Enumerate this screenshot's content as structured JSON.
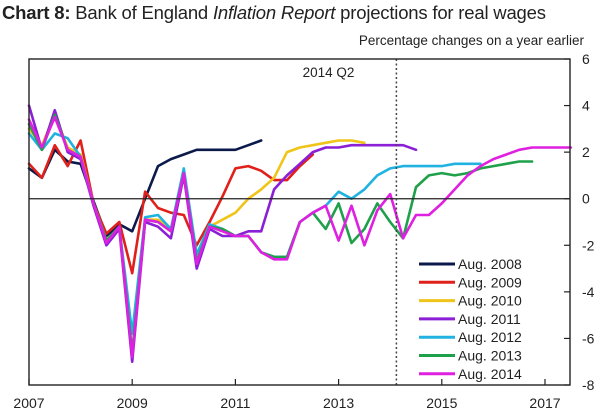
{
  "title": {
    "prefix": "Chart 8:",
    "part1": " Bank of England ",
    "italic": "Inflation Report",
    "part2": " projections for real wages"
  },
  "units": "Percentage changes on a year earlier",
  "chart_data": {
    "type": "line",
    "title": "Chart 8: Bank of England Inflation Report projections for real wages",
    "ylabel": "Percentage changes on a year earlier",
    "xlabel": "",
    "xlim": [
      2007.0,
      2017.5
    ],
    "ylim": [
      -8,
      6
    ],
    "xticks": [
      2007,
      2009,
      2011,
      2013,
      2015,
      2017
    ],
    "yticks": [
      6,
      4,
      2,
      0,
      -2,
      -4,
      -6,
      -8
    ],
    "y_axis_side": "right",
    "zero_line": true,
    "grid": false,
    "legend_position": "bottom-right",
    "annotations": [
      {
        "text": "2014 Q2",
        "x": 2014.12,
        "style": "dotted-vertical-line"
      }
    ],
    "series": [
      {
        "name": "Aug. 2008",
        "color": "#0b1a4a",
        "x": [
          2007.0,
          2007.25,
          2007.5,
          2007.75,
          2008.0,
          2008.25,
          2008.5,
          2008.75,
          2009.0,
          2009.25,
          2009.5,
          2009.75,
          2010.0,
          2010.25,
          2010.5,
          2010.75,
          2011.0,
          2011.25,
          2011.5
        ],
        "y": [
          1.3,
          0.9,
          2.1,
          1.6,
          1.5,
          -0.1,
          -1.6,
          -1.1,
          -1.4,
          0.0,
          1.4,
          1.7,
          1.9,
          2.1,
          2.1,
          2.1,
          2.1,
          2.3,
          2.5
        ]
      },
      {
        "name": "Aug. 2009",
        "color": "#e0201b",
        "x": [
          2007.0,
          2007.25,
          2007.5,
          2007.75,
          2008.0,
          2008.25,
          2008.5,
          2008.75,
          2009.0,
          2009.25,
          2009.5,
          2009.75,
          2010.0,
          2010.25,
          2010.5,
          2010.75,
          2011.0,
          2011.25,
          2011.5,
          2011.75,
          2012.0,
          2012.25,
          2012.5
        ],
        "y": [
          1.5,
          0.9,
          2.3,
          1.4,
          2.5,
          -0.2,
          -1.5,
          -1.0,
          -3.2,
          0.3,
          -0.4,
          -0.6,
          -0.7,
          -2.0,
          -1.0,
          0.1,
          1.3,
          1.4,
          1.2,
          0.8,
          0.8,
          1.4,
          1.9
        ]
      },
      {
        "name": "Aug. 2010",
        "color": "#f0c419",
        "x": [
          2007.0,
          2007.25,
          2007.5,
          2007.75,
          2008.0,
          2008.25,
          2008.5,
          2008.75,
          2009.0,
          2009.25,
          2009.5,
          2009.75,
          2010.0,
          2010.25,
          2010.5,
          2010.75,
          2011.0,
          2011.25,
          2011.5,
          2011.75,
          2012.0,
          2012.25,
          2012.5,
          2012.75,
          2013.0,
          2013.25,
          2013.5
        ],
        "y": [
          3.0,
          2.3,
          3.6,
          2.2,
          1.9,
          -0.2,
          -1.8,
          -1.2,
          -6.9,
          -0.9,
          -0.9,
          -1.3,
          1.0,
          -2.7,
          -1.2,
          -0.9,
          -0.6,
          0.0,
          0.4,
          0.9,
          2.0,
          2.2,
          2.3,
          2.4,
          2.5,
          2.5,
          2.4
        ]
      },
      {
        "name": "Aug. 2011",
        "color": "#8a1fd6",
        "x": [
          2007.0,
          2007.25,
          2007.5,
          2007.75,
          2008.0,
          2008.25,
          2008.5,
          2008.75,
          2009.0,
          2009.25,
          2009.5,
          2009.75,
          2010.0,
          2010.25,
          2010.5,
          2010.75,
          2011.0,
          2011.25,
          2011.5,
          2011.75,
          2012.0,
          2012.25,
          2012.5,
          2012.75,
          2013.0,
          2013.25,
          2013.5,
          2013.75,
          2014.0,
          2014.25,
          2014.5
        ],
        "y": [
          4.0,
          2.1,
          3.8,
          2.0,
          1.7,
          -0.3,
          -2.0,
          -1.3,
          -7.0,
          -1.0,
          -1.2,
          -1.7,
          1.0,
          -3.0,
          -1.3,
          -1.6,
          -1.6,
          -1.4,
          -1.4,
          0.4,
          1.0,
          1.5,
          2.0,
          2.2,
          2.2,
          2.3,
          2.3,
          2.3,
          2.3,
          2.3,
          2.1
        ]
      },
      {
        "name": "Aug. 2012",
        "color": "#20b2e0",
        "x": [
          2007.0,
          2007.25,
          2007.5,
          2007.75,
          2008.0,
          2008.25,
          2008.5,
          2008.75,
          2009.0,
          2009.25,
          2009.5,
          2009.75,
          2010.0,
          2010.25,
          2010.5,
          2010.75,
          2011.0,
          2011.25,
          2011.5,
          2011.75,
          2012.0,
          2012.25,
          2012.5,
          2012.75,
          2013.0,
          2013.25,
          2013.5,
          2013.75,
          2014.0,
          2014.25,
          2014.5,
          2014.75,
          2015.0,
          2015.25,
          2015.5,
          2015.75
        ],
        "y": [
          2.8,
          2.1,
          2.8,
          2.6,
          1.8,
          -0.2,
          -1.8,
          -1.2,
          -5.8,
          -0.8,
          -0.7,
          -1.3,
          1.3,
          -2.4,
          -1.1,
          -1.3,
          -1.6,
          -1.6,
          -2.3,
          -2.5,
          -2.5,
          -1.0,
          -0.6,
          -0.3,
          0.3,
          0.0,
          0.4,
          1.0,
          1.3,
          1.4,
          1.4,
          1.4,
          1.4,
          1.5,
          1.5,
          1.5
        ]
      },
      {
        "name": "Aug. 2013",
        "color": "#1fa04a",
        "x": [
          2007.0,
          2007.25,
          2007.5,
          2007.75,
          2008.0,
          2008.25,
          2008.5,
          2008.75,
          2009.0,
          2009.25,
          2009.5,
          2009.75,
          2010.0,
          2010.25,
          2010.5,
          2010.75,
          2011.0,
          2011.25,
          2011.5,
          2011.75,
          2012.0,
          2012.25,
          2012.5,
          2012.75,
          2013.0,
          2013.25,
          2013.5,
          2013.75,
          2014.0,
          2014.25,
          2014.5,
          2014.75,
          2015.0,
          2015.25,
          2015.5,
          2015.75,
          2016.0,
          2016.25,
          2016.5,
          2016.75
        ],
        "y": [
          3.2,
          2.1,
          3.6,
          2.1,
          1.8,
          -0.2,
          -1.8,
          -1.2,
          -6.6,
          -0.9,
          -1.0,
          -1.4,
          1.1,
          -2.7,
          -1.2,
          -1.3,
          -1.6,
          -1.6,
          -2.3,
          -2.5,
          -2.5,
          -1.0,
          -0.6,
          -1.3,
          -0.2,
          -1.9,
          -1.3,
          -0.2,
          -1.0,
          -1.7,
          0.5,
          1.0,
          1.1,
          1.0,
          1.1,
          1.3,
          1.4,
          1.5,
          1.6,
          1.6
        ]
      },
      {
        "name": "Aug. 2014",
        "color": "#e020e0",
        "x": [
          2007.0,
          2007.25,
          2007.5,
          2007.75,
          2008.0,
          2008.25,
          2008.5,
          2008.75,
          2009.0,
          2009.25,
          2009.5,
          2009.75,
          2010.0,
          2010.25,
          2010.5,
          2010.75,
          2011.0,
          2011.25,
          2011.5,
          2011.75,
          2012.0,
          2012.25,
          2012.5,
          2012.75,
          2013.0,
          2013.25,
          2013.5,
          2013.75,
          2014.0,
          2014.25,
          2014.5,
          2014.75,
          2015.0,
          2015.25,
          2015.5,
          2015.75,
          2016.0,
          2016.25,
          2016.5,
          2016.75,
          2017.0,
          2017.25,
          2017.5
        ],
        "y": [
          3.4,
          2.2,
          3.5,
          2.1,
          1.8,
          -0.2,
          -1.9,
          -1.2,
          -6.8,
          -0.9,
          -1.0,
          -1.4,
          1.1,
          -2.8,
          -1.2,
          -1.4,
          -1.6,
          -1.6,
          -2.3,
          -2.6,
          -2.6,
          -1.0,
          -0.6,
          -0.3,
          -1.8,
          -0.3,
          -2.0,
          -0.5,
          0.2,
          -1.7,
          -0.7,
          -0.7,
          -0.2,
          0.4,
          1.0,
          1.4,
          1.7,
          1.9,
          2.1,
          2.2,
          2.2,
          2.2,
          2.2
        ]
      }
    ]
  }
}
